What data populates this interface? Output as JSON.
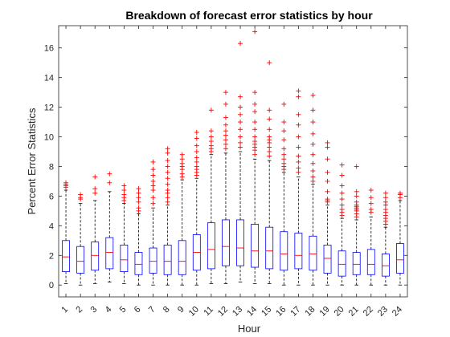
{
  "chart_data": {
    "type": "boxplot",
    "title": "Breakdown of forecast error statistics by hour",
    "xlabel": "Hour",
    "ylabel": "Percent Error Statistics",
    "ylim": [
      -0.8,
      17.5
    ],
    "yticks": [
      0,
      2,
      4,
      6,
      8,
      10,
      12,
      14,
      16
    ],
    "categories": [
      "1",
      "2",
      "3",
      "4",
      "5",
      "6",
      "7",
      "8",
      "9",
      "10",
      "11",
      "12",
      "13",
      "14",
      "15",
      "16",
      "17",
      "18",
      "19",
      "20",
      "21",
      "22",
      "23",
      "24"
    ],
    "grid": false,
    "colors": {
      "box": "#0000ff",
      "median": "#ff0000",
      "whisker": "#000000",
      "outlier": "#ff0000"
    },
    "boxes": [
      {
        "min": 0.1,
        "q1": 0.9,
        "median": 1.9,
        "q3": 3.0,
        "max": 6.4,
        "outliers": [
          6.6,
          6.7,
          6.8,
          6.9
        ]
      },
      {
        "min": 0.0,
        "q1": 0.8,
        "median": 1.6,
        "q3": 2.6,
        "max": 5.5,
        "outliers": [
          5.8,
          5.9,
          6.1
        ]
      },
      {
        "min": 0.1,
        "q1": 1.0,
        "median": 2.0,
        "q3": 2.9,
        "max": 5.7,
        "outliers": [
          6.2,
          6.5,
          7.3
        ]
      },
      {
        "min": 0.2,
        "q1": 1.1,
        "median": 2.2,
        "q3": 3.2,
        "max": 6.3,
        "outliers": [
          6.9,
          7.5
        ]
      },
      {
        "min": 0.1,
        "q1": 0.9,
        "median": 1.7,
        "q3": 2.7,
        "max": 5.5,
        "outliers": [
          5.7,
          5.9,
          6.1,
          6.4,
          6.7
        ]
      },
      {
        "min": 0.0,
        "q1": 0.7,
        "median": 1.4,
        "q3": 2.2,
        "max": 4.8,
        "outliers": [
          5.0,
          5.2,
          5.6,
          5.9,
          6.2,
          6.5
        ]
      },
      {
        "min": 0.0,
        "q1": 0.8,
        "median": 1.6,
        "q3": 2.5,
        "max": 5.2,
        "outliers": [
          5.5,
          5.9,
          6.4,
          6.7,
          7.0,
          7.4,
          7.8,
          8.3
        ]
      },
      {
        "min": 0.0,
        "q1": 0.7,
        "median": 1.6,
        "q3": 2.7,
        "max": 5.4,
        "outliers": [
          5.6,
          5.9,
          6.2,
          6.4,
          6.8,
          7.2,
          7.6,
          8.0,
          8.4,
          8.9,
          9.2
        ]
      },
      {
        "min": 0.0,
        "q1": 0.7,
        "median": 1.6,
        "q3": 3.0,
        "max": 7.1,
        "outliers": [
          7.3,
          7.5,
          7.8,
          8.0,
          8.2,
          8.5,
          8.8
        ]
      },
      {
        "min": 0.0,
        "q1": 1.0,
        "median": 2.2,
        "q3": 3.4,
        "max": 7.2,
        "outliers": [
          7.4,
          7.6,
          7.8,
          8.0,
          8.3,
          8.6,
          9.0,
          9.4,
          9.9,
          10.3
        ]
      },
      {
        "min": 0.1,
        "q1": 1.1,
        "median": 2.4,
        "q3": 4.2,
        "max": 8.8,
        "outliers": [
          9.0,
          9.2,
          9.4,
          9.7,
          10.0,
          10.4,
          11.8
        ]
      },
      {
        "min": 0.1,
        "q1": 1.3,
        "median": 2.6,
        "q3": 4.4,
        "max": 8.9,
        "outliers": [
          9.2,
          9.5,
          9.8,
          10.1,
          10.4,
          10.8,
          11.3,
          12.2,
          13.0
        ]
      },
      {
        "min": 0.2,
        "q1": 1.3,
        "median": 2.5,
        "q3": 4.4,
        "max": 9.0,
        "outliers": [
          9.3,
          9.6,
          10.0,
          10.5,
          11.0,
          11.5,
          12.0,
          12.7,
          16.3
        ]
      },
      {
        "min": 0.1,
        "q1": 1.2,
        "median": 2.3,
        "q3": 4.1,
        "max": 8.5,
        "outliers": [
          8.8,
          9.1,
          9.3,
          9.5,
          9.7,
          10.0,
          10.5,
          11.0,
          11.7,
          12.2,
          13.0,
          17.1
        ]
      },
      {
        "min": 0.1,
        "q1": 1.1,
        "median": 2.3,
        "q3": 3.9,
        "max": 8.4,
        "outliers": [
          8.7,
          9.0,
          9.3,
          9.6,
          9.8,
          10.0,
          10.5,
          11.2,
          11.8,
          15.0
        ]
      },
      {
        "min": 0.0,
        "q1": 1.0,
        "median": 2.1,
        "q3": 3.6,
        "max": 7.6,
        "outliers": [
          7.8,
          8.0,
          8.2,
          8.5,
          8.8,
          9.2,
          9.8,
          10.4,
          11.0,
          12.2
        ]
      },
      {
        "min": 0.0,
        "q1": 1.1,
        "median": 2.0,
        "q3": 3.5,
        "max": 7.3,
        "outliers": [
          7.6,
          7.9,
          8.3,
          8.7,
          9.3,
          10.0,
          10.8,
          11.5,
          12.7,
          13.1
        ]
      },
      {
        "min": 0.0,
        "q1": 1.0,
        "median": 2.1,
        "q3": 3.3,
        "max": 6.8,
        "outliers": [
          7.0,
          7.3,
          7.7,
          8.2,
          8.8,
          9.5,
          10.2,
          11.0,
          11.8,
          12.8
        ]
      },
      {
        "min": 0.0,
        "q1": 0.8,
        "median": 1.8,
        "q3": 2.7,
        "max": 5.4,
        "outliers": [
          5.6,
          5.7,
          5.8,
          6.3,
          7.0,
          7.6,
          8.5,
          9.3,
          9.6
        ]
      },
      {
        "min": 0.0,
        "q1": 0.6,
        "median": 1.4,
        "q3": 2.3,
        "max": 4.5,
        "outliers": [
          4.7,
          4.9,
          5.1,
          5.4,
          5.8,
          6.2,
          6.7,
          7.4,
          8.1
        ]
      },
      {
        "min": 0.0,
        "q1": 0.7,
        "median": 1.4,
        "q3": 2.2,
        "max": 4.4,
        "outliers": [
          4.6,
          4.8,
          5.0,
          5.1,
          5.2,
          5.3,
          5.4,
          5.6,
          6.0,
          6.3,
          8.0
        ]
      },
      {
        "min": 0.0,
        "q1": 0.7,
        "median": 1.4,
        "q3": 2.4,
        "max": 4.6,
        "outliers": [
          4.9,
          5.1,
          5.5,
          5.9,
          6.4
        ]
      },
      {
        "min": 0.0,
        "q1": 0.6,
        "median": 1.3,
        "q3": 2.1,
        "max": 3.9,
        "outliers": [
          4.1,
          4.3,
          4.5,
          4.7,
          4.9,
          5.1,
          5.4,
          5.6,
          5.9,
          6.2
        ]
      },
      {
        "min": 0.0,
        "q1": 0.8,
        "median": 1.7,
        "q3": 2.8,
        "max": 5.7,
        "outliers": [
          5.9,
          6.1,
          6.2
        ]
      }
    ]
  }
}
